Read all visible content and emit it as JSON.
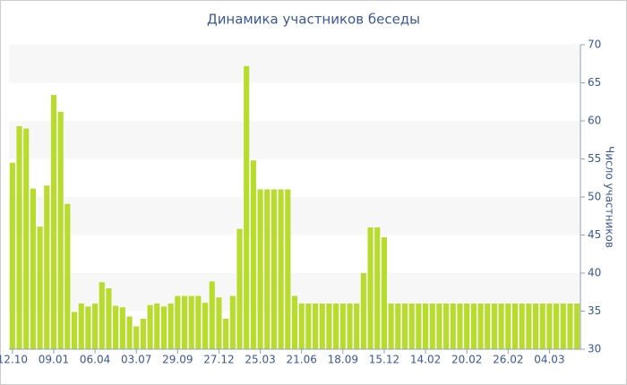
{
  "chart_data": {
    "type": "bar",
    "title": "Динамика участников беседы",
    "y_label": "Число участников",
    "color": "#b8dc2e",
    "grid": true,
    "y_axis_side": "right",
    "categories": [
      "12.10",
      null,
      null,
      null,
      null,
      null,
      "09.01",
      null,
      null,
      null,
      null,
      null,
      "06.04",
      null,
      null,
      null,
      null,
      null,
      "03.07",
      null,
      null,
      null,
      null,
      null,
      "29.09",
      null,
      null,
      null,
      null,
      null,
      "27.12",
      null,
      null,
      null,
      null,
      null,
      "25.03",
      null,
      null,
      null,
      null,
      null,
      "21.06",
      null,
      null,
      null,
      null,
      null,
      "18.09",
      null,
      null,
      null,
      null,
      null,
      "15.12",
      null,
      null,
      null,
      null,
      null,
      "14.02",
      null,
      null,
      null,
      null,
      null,
      "20.02",
      null,
      null,
      null,
      null,
      null,
      "26.02",
      null,
      null,
      null,
      null,
      null,
      "04.03",
      null,
      null,
      null,
      null
    ],
    "values": [
      54.5,
      59.3,
      59,
      51.1,
      46.1,
      51.5,
      63.4,
      61.2,
      49.1,
      34.9,
      36,
      35.6,
      36,
      38.8,
      38,
      35.7,
      35.5,
      34.3,
      33,
      34,
      35.8,
      36,
      35.6,
      36,
      37,
      37,
      37,
      37,
      36.1,
      38.9,
      36.8,
      34,
      37,
      45.8,
      67.2,
      54.8,
      51,
      51,
      51,
      51,
      51,
      37,
      36,
      36,
      36,
      36,
      36,
      36,
      36,
      36,
      36,
      40,
      46,
      46,
      44.7,
      36,
      36,
      36,
      36,
      36,
      36,
      36,
      36,
      36,
      36,
      36,
      36,
      36,
      36,
      36,
      36,
      36,
      36,
      36,
      36,
      36,
      36,
      36,
      36,
      36,
      36,
      36,
      36
    ],
    "ylim": [
      30,
      70
    ],
    "yticks": [
      30,
      35,
      40,
      45,
      50,
      55,
      60,
      65,
      70
    ]
  }
}
